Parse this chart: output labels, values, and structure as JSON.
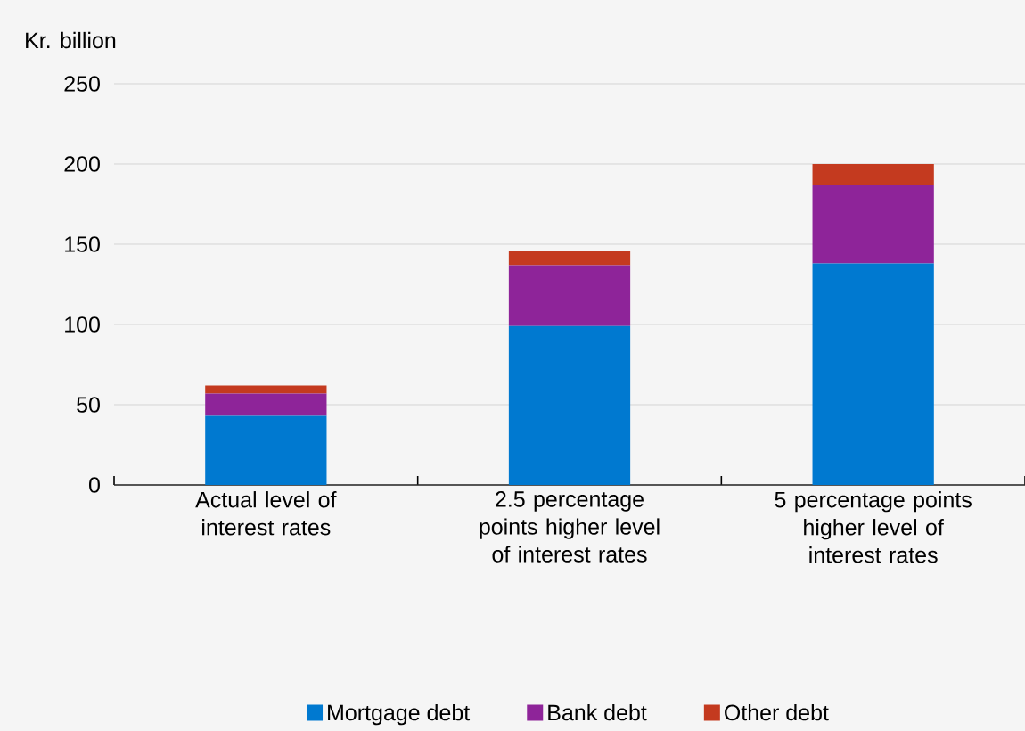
{
  "chart_data": {
    "type": "bar",
    "ylabel": "Kr. billion",
    "stacked": true,
    "categories": [
      "Actual level of interest rates",
      "2.5 percentage points higher level of interest rates",
      "5 percentage points higher level of interest rates"
    ],
    "series": [
      {
        "name": "Mortgage debt",
        "color": "#0079d0",
        "values": [
          43,
          99,
          138
        ]
      },
      {
        "name": "Bank debt",
        "color": "#8e2499",
        "values": [
          14,
          38,
          49
        ]
      },
      {
        "name": "Other debt",
        "color": "#c43a1f",
        "values": [
          5,
          9,
          13
        ]
      }
    ],
    "ylim": [
      0,
      250
    ],
    "yticks": [
      0,
      50,
      100,
      150,
      200,
      250
    ],
    "grid": "y",
    "legend": "bottom"
  }
}
